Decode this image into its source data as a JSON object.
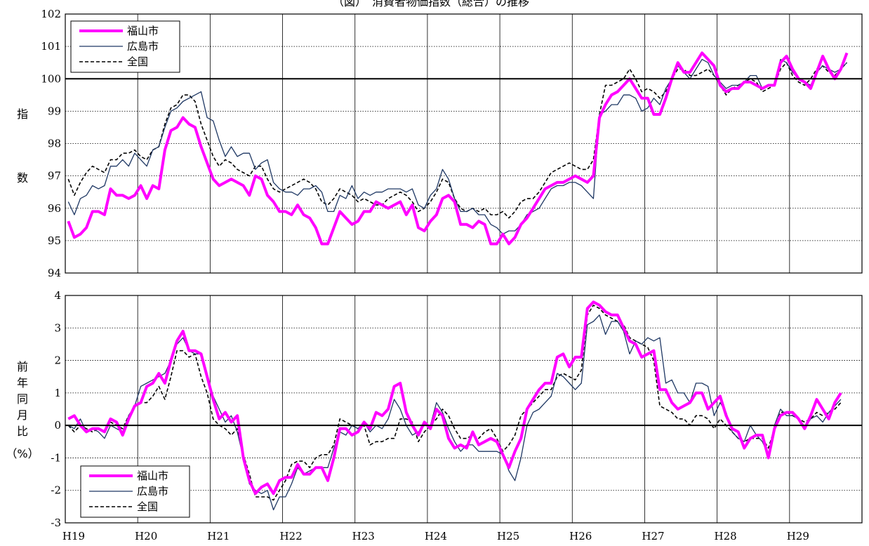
{
  "colors": {
    "fukuyama": "#ff00ff",
    "hiroshima": "#1f3864",
    "zenkoku": "#000000"
  },
  "chart_data": [
    {
      "type": "line",
      "title": "（図）　消費者物価指数（総合）の推移",
      "ylabel": "指数",
      "ylim": [
        94,
        102
      ],
      "yticks": [
        "94",
        "95",
        "96",
        "97",
        "98",
        "99",
        "100",
        "101",
        "102"
      ],
      "baseline": 100,
      "legend": "top-left",
      "x_start": "2007-01",
      "series": [
        {
          "name": "福山市",
          "style": "thick-solid",
          "values": [
            95.6,
            95.1,
            95.2,
            95.4,
            95.9,
            95.9,
            95.8,
            96.6,
            96.4,
            96.4,
            96.3,
            96.4,
            96.7,
            96.3,
            96.7,
            96.6,
            97.8,
            98.4,
            98.5,
            98.8,
            98.6,
            98.5,
            97.9,
            97.4,
            96.9,
            96.7,
            96.8,
            96.9,
            96.8,
            96.7,
            96.4,
            97.0,
            96.9,
            96.4,
            96.2,
            95.9,
            95.9,
            95.8,
            96.1,
            95.8,
            95.7,
            95.4,
            94.9,
            94.9,
            95.4,
            95.9,
            95.7,
            95.5,
            95.6,
            95.9,
            95.9,
            96.2,
            96.1,
            96.0,
            96.1,
            96.2,
            95.8,
            96.1,
            95.4,
            95.3,
            95.6,
            95.8,
            96.3,
            96.4,
            96.2,
            95.5,
            95.5,
            95.4,
            95.6,
            95.5,
            94.9,
            94.9,
            95.2,
            94.9,
            95.1,
            95.5,
            95.7,
            96.0,
            96.3,
            96.6,
            96.7,
            96.8,
            96.8,
            96.9,
            97.0,
            96.9,
            96.8,
            97.0,
            98.8,
            99.2,
            99.5,
            99.6,
            99.8,
            100.0,
            99.7,
            99.4,
            99.4,
            98.9,
            98.9,
            99.4,
            100.0,
            100.5,
            100.2,
            100.2,
            100.5,
            100.8,
            100.6,
            100.4,
            99.8,
            99.6,
            99.7,
            99.7,
            99.9,
            99.9,
            99.8,
            99.7,
            99.8,
            99.8,
            100.5,
            100.7,
            100.3,
            100.0,
            99.9,
            99.7,
            100.2,
            100.7,
            100.3,
            100.0,
            100.3,
            100.8
          ]
        },
        {
          "name": "広島市",
          "style": "thin-solid",
          "values": [
            96.2,
            95.8,
            96.3,
            96.4,
            96.7,
            96.6,
            96.7,
            97.3,
            97.3,
            97.5,
            97.3,
            97.7,
            97.5,
            97.3,
            97.8,
            97.9,
            98.5,
            99.0,
            99.1,
            99.3,
            99.4,
            99.5,
            99.6,
            98.8,
            98.7,
            98.1,
            97.6,
            97.9,
            97.6,
            97.7,
            97.7,
            97.2,
            97.4,
            97.5,
            96.8,
            96.6,
            96.5,
            96.5,
            96.4,
            96.6,
            96.6,
            96.7,
            96.5,
            95.9,
            95.9,
            96.4,
            96.3,
            96.7,
            96.3,
            96.5,
            96.4,
            96.5,
            96.5,
            96.6,
            96.6,
            96.6,
            96.5,
            96.6,
            96.1,
            96.0,
            96.4,
            96.6,
            97.2,
            96.9,
            96.3,
            95.9,
            95.9,
            96.0,
            95.8,
            95.8,
            95.5,
            95.4,
            95.2,
            95.3,
            95.3,
            95.5,
            95.8,
            95.9,
            96.0,
            96.3,
            96.6,
            96.7,
            96.7,
            96.8,
            96.8,
            96.7,
            96.5,
            96.3,
            98.9,
            99.0,
            99.2,
            99.2,
            99.5,
            99.5,
            99.4,
            99.0,
            99.1,
            99.4,
            99.2,
            99.7,
            100.0,
            100.4,
            100.2,
            100.0,
            100.3,
            100.6,
            100.5,
            100.1,
            99.9,
            99.7,
            99.8,
            99.8,
            99.9,
            100.1,
            100.1,
            99.7,
            99.8,
            99.8,
            100.6,
            100.5,
            100.2,
            100.0,
            99.9,
            99.8,
            100.2,
            100.4,
            100.3,
            100.2,
            100.3,
            100.5
          ]
        },
        {
          "name": "全国",
          "style": "dashed",
          "values": [
            96.9,
            96.4,
            96.8,
            97.1,
            97.3,
            97.2,
            97.1,
            97.5,
            97.5,
            97.7,
            97.7,
            97.8,
            97.6,
            97.5,
            97.8,
            97.9,
            98.6,
            99.1,
            99.2,
            99.5,
            99.5,
            99.3,
            98.6,
            98.1,
            97.6,
            97.3,
            97.5,
            97.4,
            97.2,
            97.1,
            97.0,
            97.3,
            97.3,
            96.9,
            96.6,
            96.5,
            96.6,
            96.7,
            96.8,
            96.9,
            96.8,
            96.6,
            96.2,
            96.1,
            96.3,
            96.6,
            96.5,
            96.4,
            96.2,
            96.3,
            96.2,
            96.1,
            96.1,
            96.3,
            96.4,
            96.5,
            96.4,
            96.2,
            95.9,
            96.0,
            96.2,
            96.5,
            96.9,
            96.8,
            96.3,
            96.0,
            95.9,
            96.0,
            95.9,
            96.0,
            95.8,
            95.8,
            95.9,
            95.7,
            95.9,
            96.2,
            96.3,
            96.3,
            96.5,
            96.8,
            97.1,
            97.2,
            97.3,
            97.4,
            97.3,
            97.2,
            97.2,
            97.5,
            98.9,
            99.8,
            99.8,
            99.9,
            100.0,
            100.3,
            100.0,
            99.6,
            99.7,
            99.6,
            99.4,
            99.6,
            100.0,
            100.3,
            100.3,
            100.1,
            100.1,
            100.2,
            100.3,
            100.1,
            99.8,
            99.5,
            99.7,
            99.8,
            99.9,
            100.0,
            99.9,
            99.6,
            99.7,
            99.8,
            100.3,
            100.5,
            100.1,
            99.9,
            99.8,
            100.0,
            100.3,
            100.4,
            100.2,
            100.1,
            100.3,
            100.5
          ]
        }
      ]
    },
    {
      "type": "line",
      "ylabel": "前年同月比（%）",
      "ylim": [
        -3,
        4
      ],
      "yticks": [
        "-3",
        "-2",
        "-1",
        "0",
        "1",
        "2",
        "3",
        "4"
      ],
      "baseline": 0,
      "legend": "bottom-left",
      "x_start": "2007-01",
      "x_tick_labels": [
        "H19",
        "H20",
        "H21",
        "H22",
        "H23",
        "H24",
        "H25",
        "H26",
        "H27",
        "H28",
        "H29"
      ],
      "series": [
        {
          "name": "福山市",
          "style": "thick-solid",
          "values": [
            0.2,
            0.3,
            0.0,
            -0.2,
            -0.1,
            -0.1,
            -0.2,
            0.2,
            0.1,
            -0.3,
            0.2,
            0.6,
            0.7,
            1.2,
            1.3,
            1.6,
            1.3,
            2.0,
            2.6,
            2.9,
            2.3,
            2.3,
            2.2,
            1.5,
            0.8,
            0.2,
            0.4,
            0.1,
            0.3,
            -1.0,
            -1.7,
            -2.1,
            -1.9,
            -1.8,
            -2.1,
            -1.7,
            -1.6,
            -1.6,
            -1.2,
            -1.5,
            -1.5,
            -1.3,
            -1.3,
            -1.7,
            -1.0,
            -0.1,
            -0.1,
            -0.3,
            -0.2,
            0.1,
            -0.1,
            0.4,
            0.3,
            0.5,
            1.2,
            1.3,
            0.4,
            0.0,
            -0.3,
            0.1,
            -0.1,
            0.5,
            0.3,
            -0.4,
            -0.7,
            -0.6,
            -0.7,
            -0.2,
            -0.6,
            -0.5,
            -0.4,
            -0.5,
            -0.9,
            -1.3,
            -0.8,
            -0.4,
            0.5,
            0.8,
            1.1,
            1.3,
            1.3,
            2.1,
            2.2,
            1.8,
            2.1,
            2.1,
            3.6,
            3.8,
            3.7,
            3.5,
            3.4,
            3.4,
            3.0,
            2.6,
            2.5,
            2.1,
            2.2,
            2.3,
            1.1,
            1.1,
            0.7,
            0.5,
            0.6,
            0.7,
            1.0,
            1.0,
            0.5,
            0.7,
            0.9,
            0.3,
            -0.1,
            -0.2,
            -0.7,
            -0.4,
            -0.3,
            -0.3,
            -1.0,
            -0.1,
            0.3,
            0.4,
            0.4,
            0.2,
            -0.1,
            0.3,
            0.8,
            0.5,
            0.2,
            0.7,
            1.0
          ]
        },
        {
          "name": "広島市",
          "style": "thin-solid",
          "values": [
            0.0,
            -0.1,
            0.2,
            -0.2,
            -0.1,
            -0.2,
            -0.4,
            0.0,
            -0.1,
            -0.2,
            0.3,
            0.6,
            1.2,
            1.3,
            1.4,
            1.5,
            1.6,
            2.0,
            2.5,
            2.7,
            2.3,
            2.2,
            2.2,
            1.5,
            0.9,
            0.5,
            0.1,
            0.3,
            -0.2,
            -1.0,
            -1.8,
            -2.0,
            -2.1,
            -2.0,
            -2.6,
            -2.2,
            -2.2,
            -1.8,
            -1.3,
            -1.5,
            -1.4,
            -1.3,
            -1.3,
            -1.3,
            -0.7,
            -0.2,
            -0.3,
            0.0,
            -0.1,
            0.1,
            -0.2,
            0.0,
            -0.1,
            0.2,
            0.8,
            0.5,
            0.0,
            -0.3,
            -0.2,
            0.0,
            0.0,
            0.7,
            0.4,
            -0.1,
            -0.5,
            -0.8,
            -0.6,
            -0.6,
            -0.8,
            -0.8,
            -0.8,
            -0.8,
            -0.9,
            -1.4,
            -1.7,
            -1.0,
            0.0,
            0.4,
            0.5,
            0.7,
            0.9,
            1.6,
            1.5,
            1.3,
            1.1,
            1.3,
            3.1,
            3.2,
            3.4,
            2.8,
            3.2,
            3.2,
            2.9,
            2.2,
            2.6,
            2.5,
            2.7,
            2.6,
            2.7,
            1.3,
            1.4,
            1.0,
            1.0,
            0.7,
            1.3,
            1.3,
            1.2,
            0.3,
            0.7,
            0.4,
            -0.2,
            -0.4,
            -0.5,
            0.0,
            -0.3,
            -0.5,
            -0.9,
            0.0,
            0.5,
            0.3,
            0.3,
            0.2,
            -0.1,
            0.2,
            0.3,
            0.1,
            0.4,
            0.6,
            0.8
          ]
        },
        {
          "name": "全国",
          "style": "dashed",
          "values": [
            0.0,
            -0.2,
            0.0,
            -0.1,
            -0.2,
            -0.1,
            -0.2,
            0.1,
            0.0,
            -0.1,
            0.3,
            0.6,
            0.7,
            0.7,
            0.9,
            1.2,
            0.8,
            1.5,
            2.3,
            2.3,
            2.1,
            2.2,
            1.5,
            1.0,
            0.2,
            0.0,
            -0.1,
            -0.3,
            -0.1,
            -0.9,
            -1.5,
            -2.2,
            -2.2,
            -2.2,
            -2.3,
            -2.0,
            -1.7,
            -1.2,
            -1.1,
            -1.1,
            -1.3,
            -1.0,
            -0.9,
            -0.9,
            -0.6,
            0.2,
            0.1,
            0.0,
            -0.1,
            0.0,
            -0.6,
            -0.5,
            -0.5,
            -0.4,
            -0.4,
            0.2,
            0.2,
            0.1,
            -0.5,
            -0.2,
            0.0,
            0.2,
            0.5,
            0.3,
            -0.1,
            -0.4,
            -0.4,
            -0.3,
            -0.4,
            -0.2,
            -0.1,
            -0.4,
            -0.8,
            -0.6,
            -0.3,
            0.3,
            0.5,
            0.7,
            0.9,
            1.1,
            1.1,
            1.5,
            1.6,
            1.5,
            1.4,
            1.7,
            3.4,
            3.7,
            3.6,
            3.4,
            3.3,
            3.2,
            3.1,
            2.7,
            2.6,
            2.5,
            2.4,
            2.0,
            0.6,
            0.5,
            0.4,
            0.2,
            0.2,
            0.0,
            0.3,
            0.3,
            0.2,
            -0.1,
            0.2,
            0.0,
            -0.2,
            -0.4,
            -0.5,
            -0.4,
            -0.4,
            -0.4,
            -0.7,
            -0.1,
            0.4,
            0.4,
            0.3,
            0.2,
            0.1,
            0.2,
            0.4,
            0.3,
            0.4,
            0.5,
            0.7
          ]
        }
      ]
    }
  ]
}
